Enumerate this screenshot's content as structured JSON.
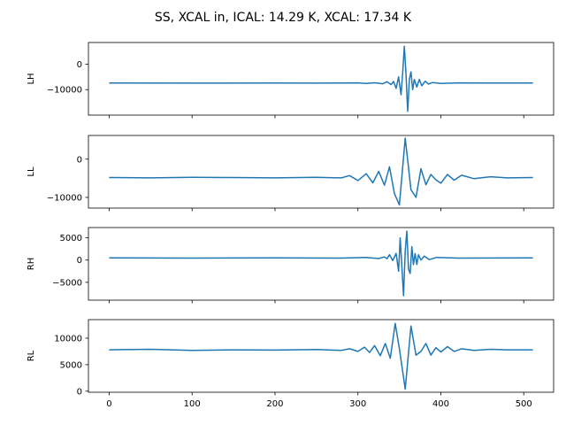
{
  "title": "SS, XCAL in, ICAL: 14.29 K, XCAL: 17.34 K",
  "line_color": "#1f77b4",
  "chart_data": [
    {
      "type": "line",
      "ylabel": "LH",
      "xlim": [
        -25,
        536
      ],
      "ylim": [
        -20000,
        8500
      ],
      "yticks": [
        0,
        -10000
      ],
      "yticklabels": [
        "0",
        "−10000"
      ],
      "xticks": [
        0,
        100,
        200,
        300,
        400,
        500
      ],
      "xticklabels": [],
      "baseline": -7400,
      "x": [
        0,
        100,
        200,
        250,
        280,
        300,
        310,
        320,
        330,
        335,
        340,
        343,
        346,
        349,
        352,
        354,
        356,
        358,
        360,
        362,
        364,
        366,
        368,
        371,
        374,
        377,
        381,
        385,
        390,
        400,
        420,
        450,
        511
      ],
      "y": [
        -7400,
        -7450,
        -7400,
        -7450,
        -7400,
        -7350,
        -7550,
        -7300,
        -7700,
        -6900,
        -8000,
        -6800,
        -9500,
        -5000,
        -12000,
        -3000,
        7000,
        -4000,
        -18500,
        -6000,
        -3000,
        -10000,
        -6000,
        -9000,
        -6000,
        -8500,
        -6700,
        -7800,
        -7200,
        -7600,
        -7350,
        -7400,
        -7400
      ]
    },
    {
      "type": "line",
      "ylabel": "LL",
      "xlim": [
        -25,
        536
      ],
      "ylim": [
        -12800,
        6200
      ],
      "yticks": [
        0,
        -10000
      ],
      "yticklabels": [
        "0",
        "−10000"
      ],
      "xticks": [
        0,
        100,
        200,
        300,
        400,
        500
      ],
      "xticklabels": [],
      "baseline": -4800,
      "x": [
        0,
        50,
        100,
        150,
        200,
        250,
        280,
        290,
        300,
        310,
        318,
        325,
        332,
        338,
        344,
        350,
        357,
        364,
        370,
        376,
        382,
        388,
        394,
        400,
        408,
        416,
        425,
        440,
        460,
        480,
        511
      ],
      "y": [
        -4800,
        -4900,
        -4750,
        -4800,
        -4900,
        -4750,
        -4900,
        -4300,
        -5600,
        -3800,
        -6200,
        -3200,
        -6800,
        -2000,
        -9000,
        -12000,
        5500,
        -8000,
        -10000,
        -2500,
        -6700,
        -4000,
        -5400,
        -6300,
        -4000,
        -5500,
        -4200,
        -5100,
        -4600,
        -4900,
        -4800
      ]
    },
    {
      "type": "line",
      "ylabel": "RH",
      "xlim": [
        -25,
        536
      ],
      "ylim": [
        -9000,
        7300
      ],
      "yticks": [
        5000,
        0,
        -5000
      ],
      "yticklabels": [
        "5000",
        "0",
        "−5000"
      ],
      "xticks": [
        0,
        100,
        200,
        300,
        400,
        500
      ],
      "xticklabels": [],
      "baseline": 500,
      "x": [
        0,
        100,
        200,
        280,
        310,
        325,
        332,
        335,
        338,
        342,
        346,
        349,
        351,
        353,
        355,
        357,
        359,
        361,
        363,
        365,
        367,
        369,
        371,
        373,
        376,
        380,
        386,
        395,
        420,
        511
      ],
      "y": [
        500,
        450,
        500,
        450,
        600,
        350,
        700,
        300,
        1200,
        -100,
        1500,
        -2500,
        5000,
        -1500,
        -8000,
        2000,
        6500,
        -2000,
        -3000,
        3000,
        -1000,
        1500,
        -1000,
        1200,
        0,
        900,
        100,
        600,
        450,
        500
      ]
    },
    {
      "type": "line",
      "ylabel": "RL",
      "xlim": [
        -25,
        536
      ],
      "ylim": [
        -200,
        13500
      ],
      "yticks": [
        10000,
        5000,
        0
      ],
      "yticklabels": [
        "10000",
        "5000",
        "0"
      ],
      "xticks": [
        0,
        100,
        200,
        300,
        400,
        500
      ],
      "xticklabels": [
        "0",
        "100",
        "200",
        "300",
        "400",
        "500"
      ],
      "baseline": 7800,
      "x": [
        0,
        50,
        100,
        150,
        200,
        250,
        280,
        290,
        300,
        308,
        314,
        320,
        327,
        333,
        339,
        345,
        350,
        357,
        364,
        370,
        376,
        382,
        388,
        394,
        400,
        408,
        416,
        425,
        440,
        460,
        480,
        511
      ],
      "y": [
        7800,
        7900,
        7700,
        7800,
        7750,
        7850,
        7700,
        8000,
        7500,
        8300,
        7300,
        8600,
        6700,
        9000,
        6200,
        12800,
        8000,
        400,
        12300,
        6800,
        7500,
        9000,
        6800,
        8200,
        7400,
        8400,
        7500,
        8000,
        7700,
        7900,
        7800,
        7800
      ]
    }
  ]
}
